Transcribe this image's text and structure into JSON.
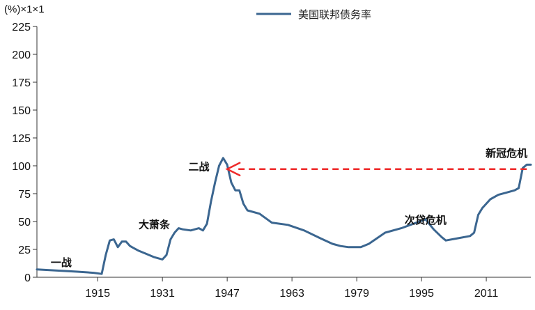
{
  "chart_data": {
    "type": "line",
    "title": "",
    "ylabel": "(%)×1×1",
    "xlabel": "",
    "ylim": [
      0,
      225
    ],
    "xlim": [
      1900,
      2022
    ],
    "y_ticks": [
      0,
      25,
      50,
      75,
      100,
      125,
      150,
      175,
      200,
      225
    ],
    "x_ticks": [
      1915,
      1931,
      1947,
      1963,
      1979,
      1995,
      2011
    ],
    "grid": false,
    "legend_position": "top-center",
    "series": [
      {
        "name": "美国联邦债务率",
        "color": "#3b6690",
        "x": [
          1900,
          1905,
          1910,
          1914,
          1916,
          1917,
          1918,
          1919,
          1920,
          1921,
          1922,
          1923,
          1924,
          1925,
          1927,
          1929,
          1930,
          1931,
          1932,
          1933,
          1934,
          1935,
          1936,
          1938,
          1940,
          1941,
          1942,
          1943,
          1944,
          1945,
          1946,
          1947,
          1948,
          1949,
          1950,
          1951,
          1952,
          1955,
          1958,
          1962,
          1966,
          1970,
          1973,
          1975,
          1977,
          1980,
          1982,
          1984,
          1986,
          1990,
          1993,
          1996,
          1998,
          2000,
          2001,
          2004,
          2007,
          2008,
          2009,
          2010,
          2012,
          2014,
          2016,
          2018,
          2019,
          2020,
          2021,
          2022
        ],
        "values": [
          7,
          6,
          5,
          4,
          3,
          20,
          33,
          34,
          27,
          32,
          32,
          28,
          26,
          24,
          21,
          18,
          17,
          16,
          20,
          34,
          40,
          44,
          43,
          42,
          44,
          42,
          48,
          68,
          85,
          100,
          107,
          101,
          85,
          78,
          78,
          66,
          60,
          57,
          49,
          47,
          42,
          35,
          30,
          28,
          27,
          27,
          30,
          35,
          40,
          44,
          48,
          52,
          43,
          36,
          33,
          35,
          37,
          40,
          56,
          62,
          70,
          74,
          76,
          78,
          80,
          98,
          101,
          101
        ]
      }
    ],
    "annotations": [
      {
        "text": "一战",
        "x": 1906,
        "y": 10
      },
      {
        "text": "大萧条",
        "x": 1929,
        "y": 44
      },
      {
        "text": "二战",
        "x": 1940,
        "y": 96
      },
      {
        "text": "次贷危机",
        "x": 1996,
        "y": 48
      },
      {
        "text": "新冠危机",
        "x": 2016,
        "y": 108
      }
    ],
    "reference_arrow": {
      "from_x": 2021,
      "to_x": 1947,
      "y": 97,
      "color": "#ee2a2a",
      "style": "dashed"
    }
  }
}
